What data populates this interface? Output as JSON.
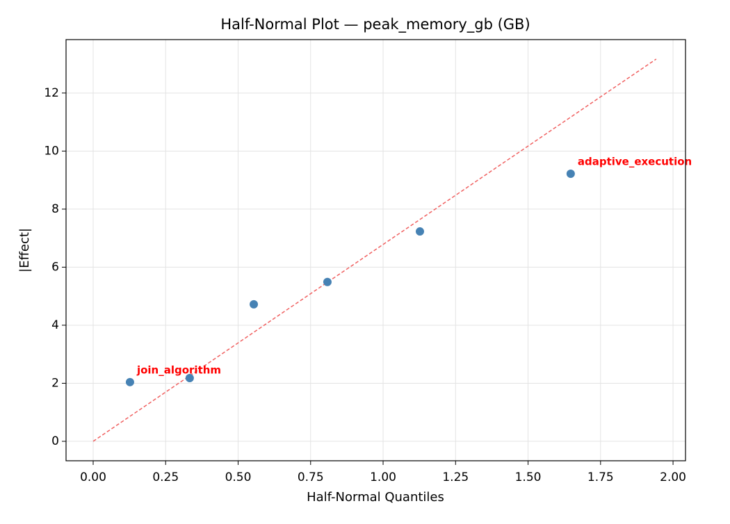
{
  "chart_data": {
    "type": "scatter",
    "title": "Half-Normal Plot — peak_memory_gb (GB)",
    "x_label": "Half-Normal Quantiles",
    "y_label": "|Effect|",
    "x": [
      0.127,
      0.333,
      0.554,
      0.808,
      1.127,
      1.647
    ],
    "values": [
      2.04,
      2.18,
      4.72,
      5.49,
      7.23,
      9.22
    ],
    "color": "#4682b4",
    "reference_line": {
      "x": [
        0,
        1.942
      ],
      "values": [
        0,
        13.17
      ],
      "color": "#f06060"
    },
    "annotations": [
      {
        "text": "join_algorithm",
        "x": 0.127,
        "y": 2.04,
        "color": "#ff0000"
      },
      {
        "text": "adaptive_execution",
        "x": 1.647,
        "y": 9.22,
        "color": "#ff0000"
      }
    ],
    "xlim": [
      -0.0935,
      2.043
    ],
    "ylim": [
      -0.67,
      13.84
    ],
    "xticks": [
      {
        "value": 0,
        "label": "0.00"
      },
      {
        "value": 0.25,
        "label": "0.25"
      },
      {
        "value": 0.5,
        "label": "0.50"
      },
      {
        "value": 0.75,
        "label": "0.75"
      },
      {
        "value": 1,
        "label": "1.00"
      },
      {
        "value": 1.25,
        "label": "1.25"
      },
      {
        "value": 1.5,
        "label": "1.50"
      },
      {
        "value": 1.75,
        "label": "1.75"
      },
      {
        "value": 2,
        "label": "2.00"
      }
    ],
    "yticks": [
      0,
      2,
      4,
      6,
      8,
      10,
      12
    ],
    "grid": true
  }
}
